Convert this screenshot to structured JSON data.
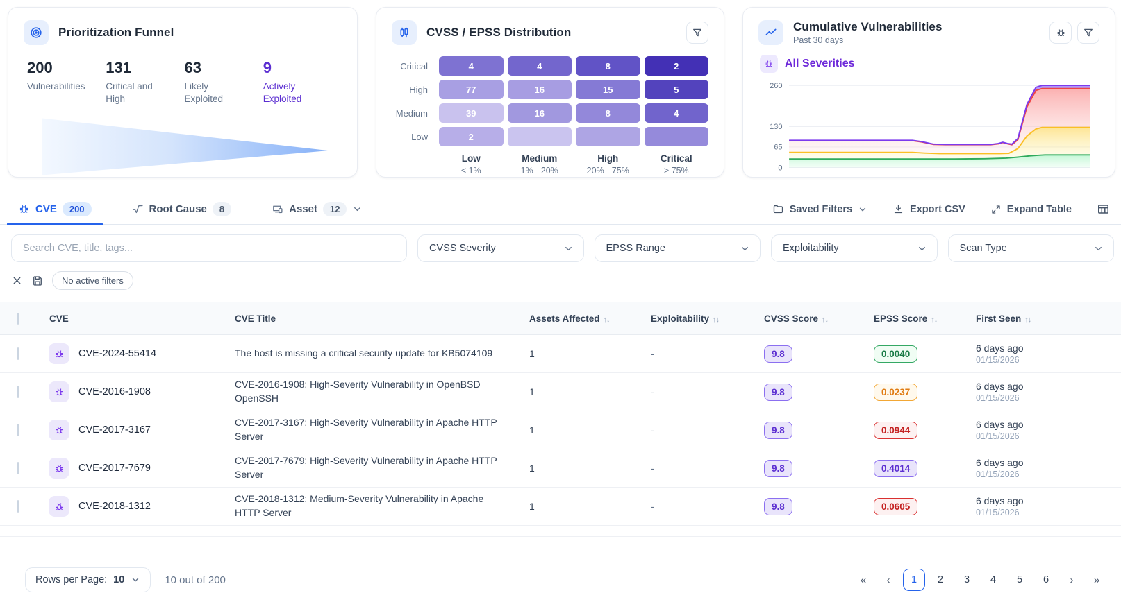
{
  "palette": {
    "accent_blue": "#2563eb",
    "accent_purple": "#5b2ed1",
    "tab_badge_bg": "#dbeafe",
    "green": "#187a45",
    "amber": "#e07b12",
    "red": "#c42121"
  },
  "cards": {
    "funnel": {
      "title": "Prioritization Funnel",
      "stats": [
        {
          "value": "200",
          "label": "Vulnerabilities"
        },
        {
          "value": "131",
          "label": "Critical and High"
        },
        {
          "value": "63",
          "label": "Likely Exploited"
        },
        {
          "value": "9",
          "label": "Actively Exploited"
        }
      ]
    },
    "distribution": {
      "title": "CVSS / EPSS Distribution",
      "row_labels": [
        "Critical",
        "High",
        "Medium",
        "Low"
      ],
      "col_labels": [
        {
          "label": "Low",
          "range": "< 1%"
        },
        {
          "label": "Medium",
          "range": "1% - 20%"
        },
        {
          "label": "High",
          "range": "20% - 75%"
        },
        {
          "label": "Critical",
          "range": "> 75%"
        }
      ],
      "cells": [
        [
          {
            "v": "4",
            "color": "#7e72d2"
          },
          {
            "v": "4",
            "color": "#7366cd"
          },
          {
            "v": "8",
            "color": "#6153c6"
          },
          {
            "v": "2",
            "color": "#4330b5"
          }
        ],
        [
          {
            "v": "77",
            "color": "#a89fe3"
          },
          {
            "v": "16",
            "color": "#a79de2"
          },
          {
            "v": "15",
            "color": "#857ad5"
          },
          {
            "v": "5",
            "color": "#5343bd"
          }
        ],
        [
          {
            "v": "39",
            "color": "#c9c2ee"
          },
          {
            "v": "16",
            "color": "#a198df"
          },
          {
            "v": "8",
            "color": "#9388da"
          },
          {
            "v": "4",
            "color": "#7164cc"
          }
        ],
        [
          {
            "v": "2",
            "color": "#b7aee8"
          },
          {
            "v": "",
            "color": "#cac4ef"
          },
          {
            "v": "",
            "color": "#aea5e4"
          },
          {
            "v": "",
            "color": "#958adb"
          }
        ]
      ]
    },
    "cumulative": {
      "title": "Cumulative Vulnerabilities",
      "subtitle": "Past 30 days",
      "legend": "All Severities"
    }
  },
  "chart_data": {
    "type": "area",
    "title": "Cumulative Vulnerabilities (Past 30 days)",
    "xlabel": "",
    "ylabel": "",
    "ylim": [
      0,
      270
    ],
    "yticks": [
      260,
      130,
      65,
      0
    ],
    "grid": true,
    "legend_position": "none",
    "x_unit": "percent-of-30-day-window",
    "series": [
      {
        "name": "series-purple",
        "color": "#7c3aed",
        "points": [
          [
            0,
            86
          ],
          [
            41,
            86
          ],
          [
            44,
            82
          ],
          [
            48,
            74
          ],
          [
            52,
            73
          ],
          [
            67,
            73
          ],
          [
            69.5,
            76
          ],
          [
            71,
            80
          ],
          [
            72.5,
            76
          ],
          [
            74,
            74
          ],
          [
            76,
            92
          ],
          [
            79,
            200
          ],
          [
            82,
            254
          ],
          [
            84,
            260
          ],
          [
            100,
            260
          ]
        ]
      },
      {
        "name": "series-red",
        "color": "#ef4444",
        "points": [
          [
            0,
            85
          ],
          [
            41,
            85
          ],
          [
            44,
            81
          ],
          [
            48,
            73
          ],
          [
            52,
            72
          ],
          [
            67,
            72
          ],
          [
            69.5,
            75
          ],
          [
            71,
            79
          ],
          [
            72.5,
            75
          ],
          [
            74,
            72
          ],
          [
            76,
            88
          ],
          [
            79,
            192
          ],
          [
            82,
            244
          ],
          [
            84,
            250
          ],
          [
            100,
            250
          ]
        ]
      },
      {
        "name": "series-amber",
        "color": "#fbbf24",
        "points": [
          [
            0,
            48
          ],
          [
            41,
            48
          ],
          [
            45,
            46
          ],
          [
            50,
            44
          ],
          [
            70,
            44
          ],
          [
            73,
            45
          ],
          [
            76,
            60
          ],
          [
            79,
            100
          ],
          [
            82,
            122
          ],
          [
            84,
            127
          ],
          [
            100,
            127
          ]
        ]
      },
      {
        "name": "series-green",
        "color": "#2faa5c",
        "points": [
          [
            0,
            27
          ],
          [
            55,
            27
          ],
          [
            65,
            28
          ],
          [
            72,
            30
          ],
          [
            76,
            33
          ],
          [
            80,
            37
          ],
          [
            83,
            39
          ],
          [
            85,
            40
          ],
          [
            100,
            40
          ]
        ]
      }
    ]
  },
  "tabs": [
    {
      "label": "CVE",
      "count": "200"
    },
    {
      "label": "Root Cause",
      "count": "8"
    },
    {
      "label": "Asset",
      "count": "12"
    }
  ],
  "toolbar": {
    "saved_filters": "Saved Filters",
    "export_csv": "Export CSV",
    "expand_table": "Expand Table"
  },
  "filters": {
    "search_placeholder": "Search CVE, title, tags...",
    "selects": [
      "CVSS Severity",
      "EPSS Range",
      "Exploitability",
      "Scan Type"
    ],
    "chip": "No active filters"
  },
  "table": {
    "columns": [
      "CVE",
      "CVE Title",
      "Assets Affected",
      "Exploitability",
      "CVSS Score",
      "EPSS Score",
      "First Seen"
    ],
    "rows": [
      {
        "cve": "CVE-2024-55414",
        "title": "The host is missing a critical security update for KB5074109",
        "assets": "1",
        "exploitability": "-",
        "cvss": "9.8",
        "epss": {
          "value": "0.0040",
          "tone": "green"
        },
        "seen_rel": "6 days ago",
        "seen_date": "01/15/2026"
      },
      {
        "cve": "CVE-2016-1908",
        "title": "CVE-2016-1908: High-Severity Vulnerability in OpenBSD OpenSSH",
        "assets": "1",
        "exploitability": "-",
        "cvss": "9.8",
        "epss": {
          "value": "0.0237",
          "tone": "amber"
        },
        "seen_rel": "6 days ago",
        "seen_date": "01/15/2026"
      },
      {
        "cve": "CVE-2017-3167",
        "title": "CVE-2017-3167: High-Severity Vulnerability in Apache HTTP Server",
        "assets": "1",
        "exploitability": "-",
        "cvss": "9.8",
        "epss": {
          "value": "0.0944",
          "tone": "red"
        },
        "seen_rel": "6 days ago",
        "seen_date": "01/15/2026"
      },
      {
        "cve": "CVE-2017-7679",
        "title": "CVE-2017-7679: High-Severity Vulnerability in Apache HTTP Server",
        "assets": "1",
        "exploitability": "-",
        "cvss": "9.8",
        "epss": {
          "value": "0.4014",
          "tone": "purple"
        },
        "seen_rel": "6 days ago",
        "seen_date": "01/15/2026"
      },
      {
        "cve": "CVE-2018-1312",
        "title": "CVE-2018-1312: Medium-Severity Vulnerability in Apache HTTP Server",
        "assets": "1",
        "exploitability": "-",
        "cvss": "9.8",
        "epss": {
          "value": "0.0605",
          "tone": "red"
        },
        "seen_rel": "6 days ago",
        "seen_date": "01/15/2026"
      }
    ]
  },
  "pagination": {
    "rows_label": "Rows per Page:",
    "rows_value": "10",
    "summary": "10 out of 200",
    "pages": [
      "1",
      "2",
      "3",
      "4",
      "5",
      "6"
    ],
    "active_page": "1"
  }
}
